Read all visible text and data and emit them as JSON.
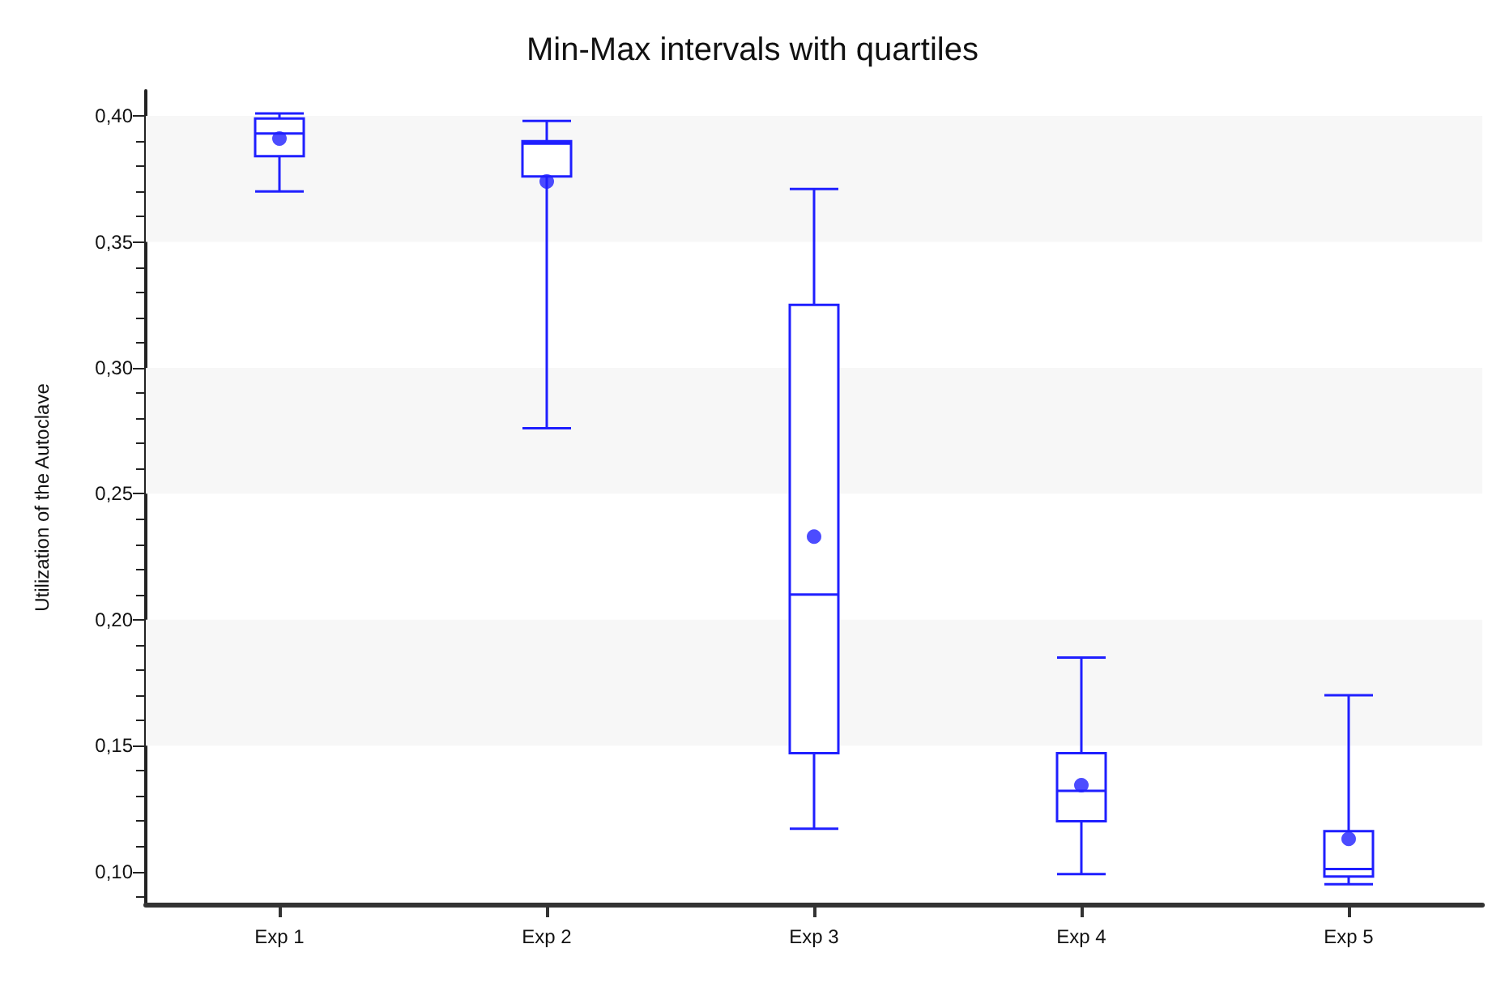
{
  "chart_data": {
    "type": "box",
    "title": "Min-Max intervals with quartiles",
    "ylabel": "Utilization of the Autoclave",
    "categories": [
      "Exp 1",
      "Exp 2",
      "Exp 3",
      "Exp 4",
      "Exp 5"
    ],
    "color": "#1f1fff",
    "boxes": [
      {
        "low": 0.37,
        "q1": 0.384,
        "median": 0.393,
        "q3": 0.399,
        "high": 0.401,
        "mean": 0.391
      },
      {
        "low": 0.276,
        "q1": 0.376,
        "median": 0.389,
        "q3": 0.39,
        "high": 0.398,
        "mean": 0.374
      },
      {
        "low": 0.117,
        "q1": 0.147,
        "median": 0.21,
        "q3": 0.325,
        "high": 0.371,
        "mean": 0.233
      },
      {
        "low": 0.099,
        "q1": 0.12,
        "median": 0.132,
        "q3": 0.147,
        "high": 0.185,
        "mean": 0.1343
      },
      {
        "low": 0.095,
        "q1": 0.098,
        "median": 0.101,
        "q3": 0.116,
        "high": 0.17,
        "mean": 0.113
      }
    ],
    "ylim": [
      0.087,
      0.41
    ],
    "yticks": [
      {
        "value": 0.1,
        "label": "0,10"
      },
      {
        "value": 0.15,
        "label": "0,15"
      },
      {
        "value": 0.2,
        "label": "0,20"
      },
      {
        "value": 0.25,
        "label": "0,25"
      },
      {
        "value": 0.3,
        "label": "0,30"
      },
      {
        "value": 0.35,
        "label": "0,35"
      },
      {
        "value": 0.4,
        "label": "0,40"
      }
    ],
    "bands": [
      {
        "axis": "y",
        "from": 0.15,
        "to": 0.2,
        "color": "#f7f7f7"
      },
      {
        "axis": "y",
        "from": 0.25,
        "to": 0.3,
        "color": "#f7f7f7"
      },
      {
        "axis": "y",
        "from": 0.35,
        "to": 0.4,
        "color": "#f7f7f7"
      }
    ],
    "marker": "circle"
  }
}
